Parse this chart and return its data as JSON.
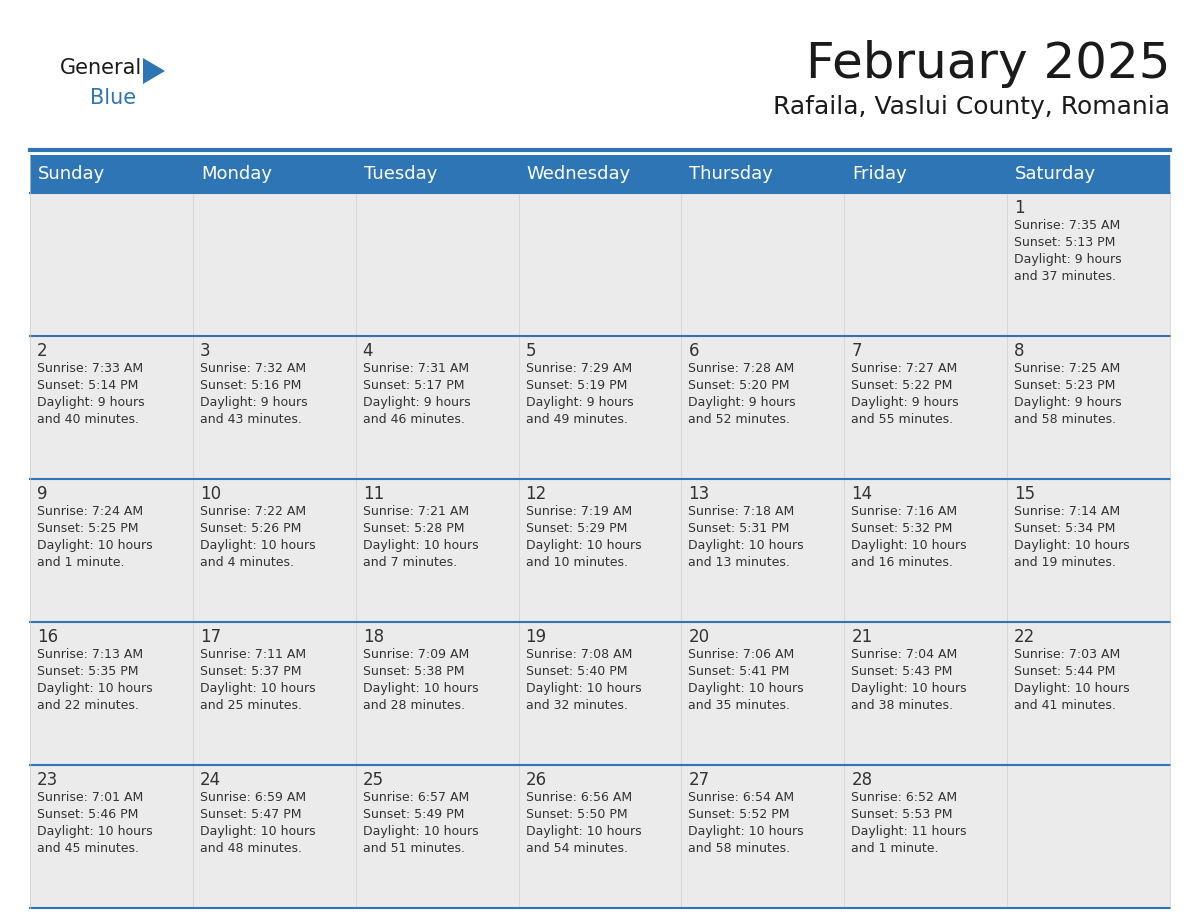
{
  "title": "February 2025",
  "subtitle": "Rafaila, Vaslui County, Romania",
  "header_bg": "#2E75B6",
  "header_text_color": "#FFFFFF",
  "cell_bg": "#EBEBEB",
  "cell_bg_empty": "#FFFFFF",
  "cell_border_color": "#2E75B6",
  "text_color": "#333333",
  "day_number_color": "#333333",
  "days_of_week": [
    "Sunday",
    "Monday",
    "Tuesday",
    "Wednesday",
    "Thursday",
    "Friday",
    "Saturday"
  ],
  "weeks": [
    [
      {
        "day": null,
        "text": ""
      },
      {
        "day": null,
        "text": ""
      },
      {
        "day": null,
        "text": ""
      },
      {
        "day": null,
        "text": ""
      },
      {
        "day": null,
        "text": ""
      },
      {
        "day": null,
        "text": ""
      },
      {
        "day": 1,
        "text": "Sunrise: 7:35 AM\nSunset: 5:13 PM\nDaylight: 9 hours\nand 37 minutes."
      }
    ],
    [
      {
        "day": 2,
        "text": "Sunrise: 7:33 AM\nSunset: 5:14 PM\nDaylight: 9 hours\nand 40 minutes."
      },
      {
        "day": 3,
        "text": "Sunrise: 7:32 AM\nSunset: 5:16 PM\nDaylight: 9 hours\nand 43 minutes."
      },
      {
        "day": 4,
        "text": "Sunrise: 7:31 AM\nSunset: 5:17 PM\nDaylight: 9 hours\nand 46 minutes."
      },
      {
        "day": 5,
        "text": "Sunrise: 7:29 AM\nSunset: 5:19 PM\nDaylight: 9 hours\nand 49 minutes."
      },
      {
        "day": 6,
        "text": "Sunrise: 7:28 AM\nSunset: 5:20 PM\nDaylight: 9 hours\nand 52 minutes."
      },
      {
        "day": 7,
        "text": "Sunrise: 7:27 AM\nSunset: 5:22 PM\nDaylight: 9 hours\nand 55 minutes."
      },
      {
        "day": 8,
        "text": "Sunrise: 7:25 AM\nSunset: 5:23 PM\nDaylight: 9 hours\nand 58 minutes."
      }
    ],
    [
      {
        "day": 9,
        "text": "Sunrise: 7:24 AM\nSunset: 5:25 PM\nDaylight: 10 hours\nand 1 minute."
      },
      {
        "day": 10,
        "text": "Sunrise: 7:22 AM\nSunset: 5:26 PM\nDaylight: 10 hours\nand 4 minutes."
      },
      {
        "day": 11,
        "text": "Sunrise: 7:21 AM\nSunset: 5:28 PM\nDaylight: 10 hours\nand 7 minutes."
      },
      {
        "day": 12,
        "text": "Sunrise: 7:19 AM\nSunset: 5:29 PM\nDaylight: 10 hours\nand 10 minutes."
      },
      {
        "day": 13,
        "text": "Sunrise: 7:18 AM\nSunset: 5:31 PM\nDaylight: 10 hours\nand 13 minutes."
      },
      {
        "day": 14,
        "text": "Sunrise: 7:16 AM\nSunset: 5:32 PM\nDaylight: 10 hours\nand 16 minutes."
      },
      {
        "day": 15,
        "text": "Sunrise: 7:14 AM\nSunset: 5:34 PM\nDaylight: 10 hours\nand 19 minutes."
      }
    ],
    [
      {
        "day": 16,
        "text": "Sunrise: 7:13 AM\nSunset: 5:35 PM\nDaylight: 10 hours\nand 22 minutes."
      },
      {
        "day": 17,
        "text": "Sunrise: 7:11 AM\nSunset: 5:37 PM\nDaylight: 10 hours\nand 25 minutes."
      },
      {
        "day": 18,
        "text": "Sunrise: 7:09 AM\nSunset: 5:38 PM\nDaylight: 10 hours\nand 28 minutes."
      },
      {
        "day": 19,
        "text": "Sunrise: 7:08 AM\nSunset: 5:40 PM\nDaylight: 10 hours\nand 32 minutes."
      },
      {
        "day": 20,
        "text": "Sunrise: 7:06 AM\nSunset: 5:41 PM\nDaylight: 10 hours\nand 35 minutes."
      },
      {
        "day": 21,
        "text": "Sunrise: 7:04 AM\nSunset: 5:43 PM\nDaylight: 10 hours\nand 38 minutes."
      },
      {
        "day": 22,
        "text": "Sunrise: 7:03 AM\nSunset: 5:44 PM\nDaylight: 10 hours\nand 41 minutes."
      }
    ],
    [
      {
        "day": 23,
        "text": "Sunrise: 7:01 AM\nSunset: 5:46 PM\nDaylight: 10 hours\nand 45 minutes."
      },
      {
        "day": 24,
        "text": "Sunrise: 6:59 AM\nSunset: 5:47 PM\nDaylight: 10 hours\nand 48 minutes."
      },
      {
        "day": 25,
        "text": "Sunrise: 6:57 AM\nSunset: 5:49 PM\nDaylight: 10 hours\nand 51 minutes."
      },
      {
        "day": 26,
        "text": "Sunrise: 6:56 AM\nSunset: 5:50 PM\nDaylight: 10 hours\nand 54 minutes."
      },
      {
        "day": 27,
        "text": "Sunrise: 6:54 AM\nSunset: 5:52 PM\nDaylight: 10 hours\nand 58 minutes."
      },
      {
        "day": 28,
        "text": "Sunrise: 6:52 AM\nSunset: 5:53 PM\nDaylight: 11 hours\nand 1 minute."
      },
      {
        "day": null,
        "text": ""
      }
    ]
  ],
  "logo_text_general": "General",
  "logo_text_blue": "Blue",
  "logo_color_general": "#1a1a1a",
  "logo_color_blue": "#2E75B6",
  "logo_triangle_color": "#2E75B6",
  "title_fontsize": 36,
  "subtitle_fontsize": 18,
  "header_fontsize": 13,
  "day_num_fontsize": 12,
  "cell_text_fontsize": 9
}
